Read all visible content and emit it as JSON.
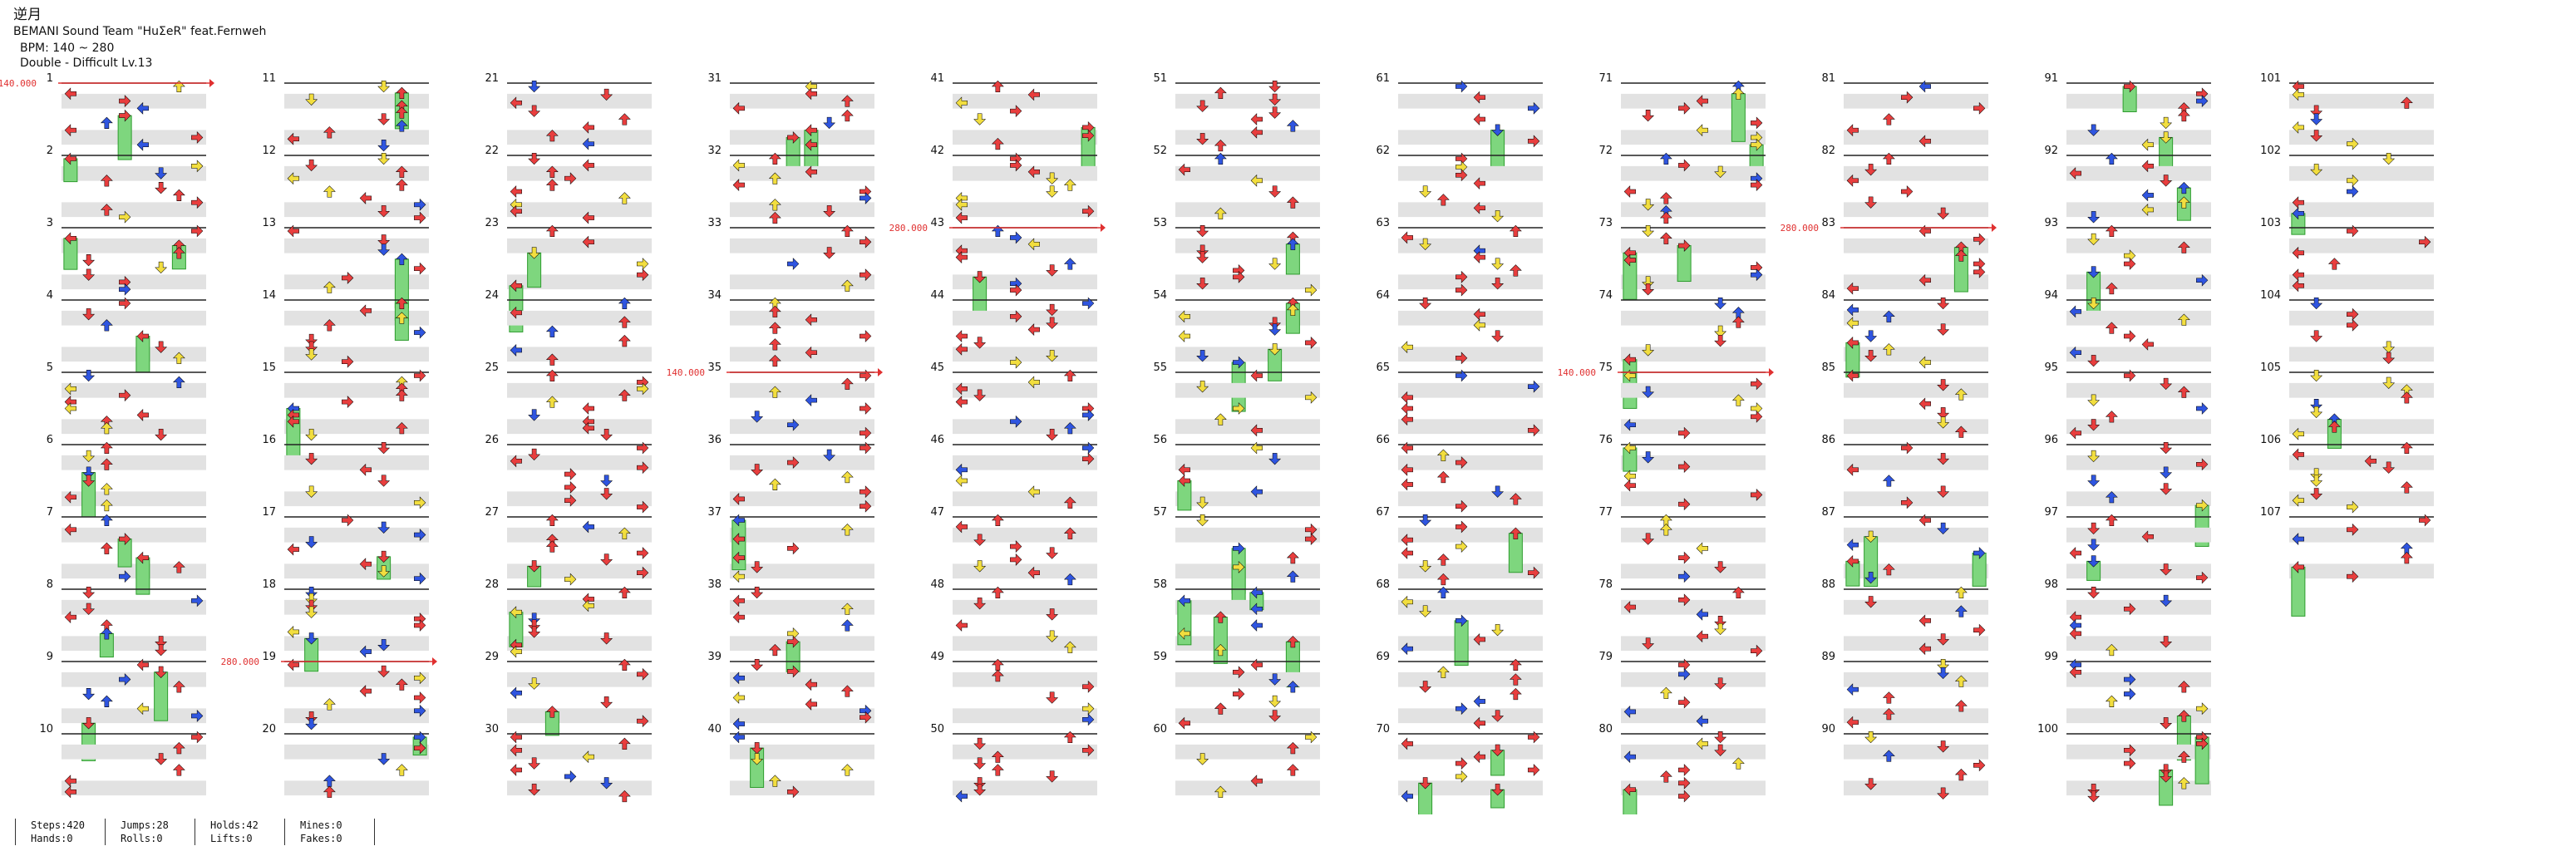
{
  "song": {
    "title": "逆月",
    "artist": "BEMANI Sound Team \"HuΣeR\" feat.Fernweh",
    "bpm": "BPM: 140 ~ 280",
    "difficulty": "Double - Difficult  Lv.13"
  },
  "measures": {
    "first": 1,
    "last": 107,
    "per_column": 10,
    "column_count": 11
  },
  "bpm_changes": [
    {
      "measure": 1,
      "label": "140.000"
    },
    {
      "measure": 19,
      "label": "280.000"
    },
    {
      "measure": 35,
      "label": "140.000"
    },
    {
      "measure": 43,
      "label": "280.000"
    },
    {
      "measure": 75,
      "label": "140.000"
    },
    {
      "measure": 83,
      "label": "280.000"
    }
  ],
  "colors": {
    "quarter_arrow": "#e83e3e",
    "eighth_arrow": "#2f55e0",
    "sixteenth_arrow": "#f2de3f",
    "hold_body": "#7ed67e",
    "hold_border": "#2e9c2e",
    "bpm_marker": "#e03030",
    "lane_shade": "#e2e2e2"
  },
  "note_legend": {
    "directions": [
      "left",
      "down",
      "up",
      "right"
    ],
    "panels": [
      "P1 left",
      "P1 down",
      "P1 up",
      "P1 right",
      "P2 left",
      "P2 down",
      "P2 up",
      "P2 right"
    ]
  },
  "stats": [
    {
      "label": "Steps",
      "value": "420"
    },
    {
      "label": "Hands",
      "value": "0"
    },
    {
      "label": "Jumps",
      "value": "28"
    },
    {
      "label": "Rolls",
      "value": "0"
    },
    {
      "label": "Holds",
      "value": "42"
    },
    {
      "label": "Lifts",
      "value": "0"
    },
    {
      "label": "Mines",
      "value": "0"
    },
    {
      "label": "Fakes",
      "value": "0"
    }
  ]
}
